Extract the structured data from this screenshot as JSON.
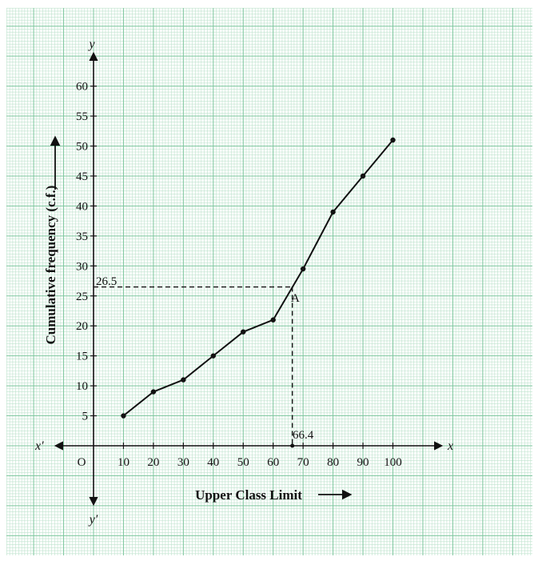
{
  "chart_data": {
    "type": "line",
    "title": "",
    "xlabel": "Upper Class Limit",
    "ylabel": "Cumulative frequency (c.f.)",
    "x_axis_letter": "x",
    "x_axis_letter_neg": "x′",
    "y_axis_letter": "y",
    "y_axis_letter_neg": "y′",
    "origin_label": "O",
    "xlim": [
      0,
      100
    ],
    "ylim": [
      0,
      60
    ],
    "x_ticks": [
      10,
      20,
      30,
      40,
      50,
      60,
      70,
      80,
      90,
      100
    ],
    "y_ticks": [
      5,
      10,
      15,
      20,
      25,
      30,
      35,
      40,
      45,
      50,
      55,
      60
    ],
    "grid": true,
    "series": [
      {
        "x": [
          10,
          20,
          30,
          40,
          50,
          60,
          70,
          80,
          90,
          100
        ],
        "y": [
          5,
          9,
          11,
          15,
          19,
          21,
          29.5,
          39,
          45,
          51
        ]
      }
    ],
    "annotations": {
      "median_y_label": "26.5",
      "median_y_value": 26.5,
      "median_x_label": "66.4",
      "median_x_value": 66.4,
      "point_label": "A"
    },
    "colors": {
      "grid_minor": "#bfe3ce",
      "grid_major": "#7fc79f",
      "ink": "#111111"
    }
  }
}
